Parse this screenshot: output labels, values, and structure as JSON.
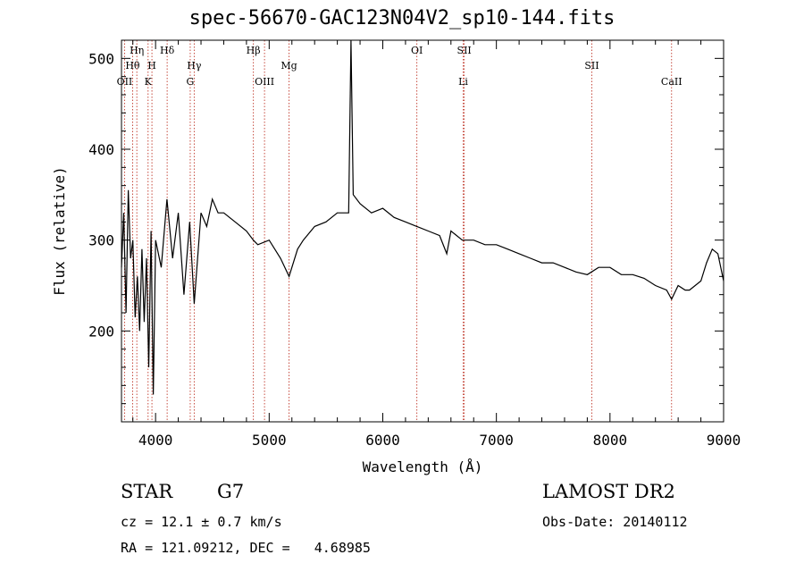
{
  "chart_data": {
    "type": "line",
    "title": "spec-56670-GAC123N04V2_sp10-144.fits",
    "xlabel": "Wavelength (Å)",
    "ylabel": "Flux (relative)",
    "xlim": [
      3700,
      9000
    ],
    "ylim": [
      100,
      520
    ],
    "xticks": [
      4000,
      5000,
      6000,
      7000,
      8000,
      9000
    ],
    "yticks": [
      200,
      300,
      400,
      500
    ],
    "grid": false,
    "line_color": "#000000",
    "marker_color": "#c0392b",
    "series": [
      {
        "x": [
          3700,
          3720,
          3740,
          3760,
          3780,
          3800,
          3820,
          3840,
          3860,
          3880,
          3900,
          3920,
          3940,
          3960,
          3980,
          4000,
          4050,
          4100,
          4150,
          4200,
          4250,
          4300,
          4340,
          4400,
          4450,
          4500,
          4550,
          4600,
          4700,
          4800,
          4861,
          4900,
          5000,
          5100,
          5175,
          5250,
          5300,
          5400,
          5500,
          5600,
          5700,
          5720,
          5740,
          5800,
          5900,
          6000,
          6100,
          6200,
          6300,
          6400,
          6500,
          6563,
          6600,
          6700,
          6800,
          6900,
          7000,
          7100,
          7200,
          7300,
          7400,
          7500,
          7600,
          7700,
          7800,
          7900,
          8000,
          8100,
          8200,
          8300,
          8400,
          8498,
          8542,
          8600,
          8662,
          8700,
          8800,
          8850,
          8900,
          8950,
          9000
        ],
        "y": [
          270,
          330,
          220,
          355,
          280,
          300,
          215,
          260,
          200,
          290,
          210,
          280,
          160,
          310,
          130,
          300,
          270,
          345,
          280,
          330,
          240,
          320,
          230,
          330,
          315,
          345,
          330,
          330,
          320,
          310,
          300,
          295,
          300,
          280,
          260,
          290,
          300,
          315,
          320,
          330,
          330,
          520,
          350,
          340,
          330,
          335,
          325,
          320,
          315,
          310,
          305,
          285,
          310,
          300,
          300,
          295,
          295,
          290,
          285,
          280,
          275,
          275,
          270,
          265,
          262,
          270,
          270,
          262,
          262,
          258,
          250,
          245,
          235,
          250,
          245,
          245,
          255,
          275,
          290,
          285,
          255
        ]
      }
    ],
    "lines": [
      {
        "name": "OII",
        "wavelength": 3727,
        "row": 3
      },
      {
        "name": "Hθ",
        "wavelength": 3798,
        "row": 2
      },
      {
        "name": "Hη",
        "wavelength": 3835,
        "row": 1
      },
      {
        "name": "K",
        "wavelength": 3934,
        "row": 3
      },
      {
        "name": "H",
        "wavelength": 3968,
        "row": 2
      },
      {
        "name": "Hδ",
        "wavelength": 4102,
        "row": 1
      },
      {
        "name": "G",
        "wavelength": 4305,
        "row": 3
      },
      {
        "name": "Hγ",
        "wavelength": 4340,
        "row": 2
      },
      {
        "name": "Hβ",
        "wavelength": 4861,
        "row": 1
      },
      {
        "name": "OIII",
        "wavelength": 4959,
        "row": 3
      },
      {
        "name": "Mg",
        "wavelength": 5175,
        "row": 2
      },
      {
        "name": "OI",
        "wavelength": 6300,
        "row": 1
      },
      {
        "name": "SII",
        "wavelength": 6717,
        "row": 1
      },
      {
        "name": "Li",
        "wavelength": 6708,
        "row": 3
      },
      {
        "name": "SII",
        "wavelength": 7840,
        "row": 2
      },
      {
        "name": "CaII",
        "wavelength": 8542,
        "row": 3
      }
    ]
  },
  "info": {
    "class_text": "STAR",
    "subclass_text": "G7",
    "survey_text": "LAMOST DR2",
    "cz_text": "cz = 12.1 ± 0.7 km/s",
    "obs_date_text": "Obs-Date: 20140112",
    "radec_text": "RA = 121.09212, DEC =   4.68985"
  }
}
